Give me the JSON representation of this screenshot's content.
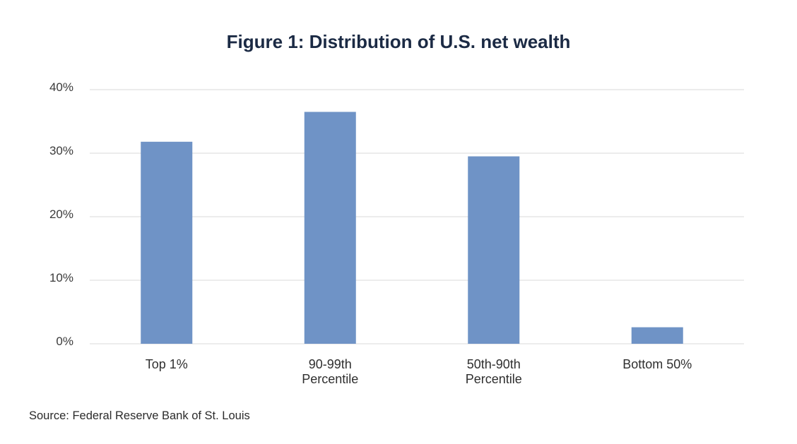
{
  "chart_data": {
    "type": "bar",
    "title": "Figure 1: Distribution of U.S. net wealth",
    "categories": [
      [
        "Top 1%"
      ],
      [
        "90-99th",
        "Percentile"
      ],
      [
        "50th-90th",
        "Percentile"
      ],
      [
        "Bottom 50%"
      ]
    ],
    "values": [
      31.8,
      36.5,
      29.5,
      2.6
    ],
    "ylim": [
      0,
      40
    ],
    "yticks": [
      0,
      10,
      20,
      30,
      40
    ],
    "ytick_labels": [
      "0%",
      "10%",
      "20%",
      "30%",
      "40%"
    ],
    "xlabel": "",
    "ylabel": "",
    "grid": true,
    "legend": "none",
    "bar_color": "#6f93c6",
    "grid_color": "#d9d9d9"
  },
  "source": "Source: Federal Reserve Bank of St. Louis"
}
